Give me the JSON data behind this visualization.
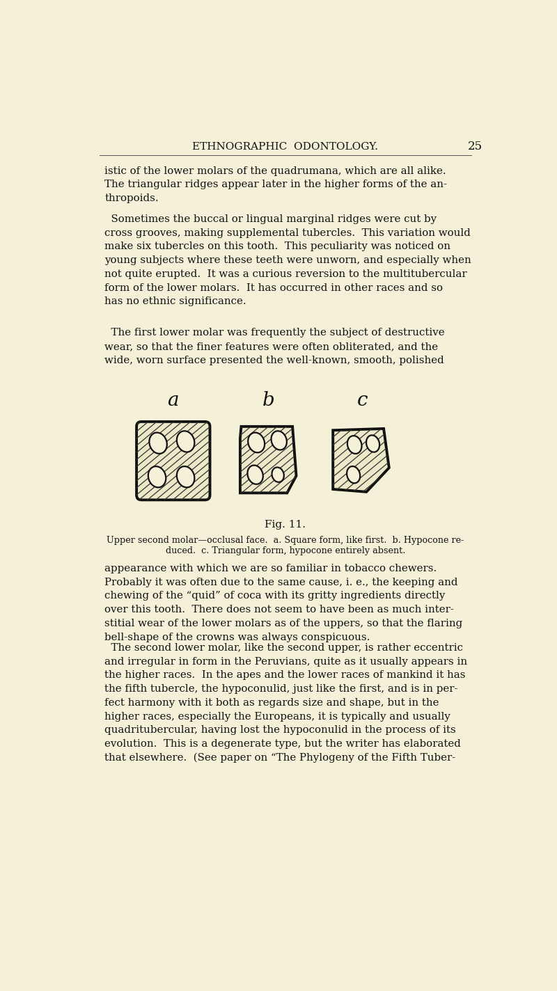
{
  "bg_color": "#f5f0d8",
  "page_number": "25",
  "header_text": "ETHNOGRAPHIC  ODONTOLOGY.",
  "title_text": "Fig. 11.",
  "label_a": "a",
  "label_b": "b",
  "label_c": "c",
  "paragraphs_top": [
    "istic of the lower molars of the quadrumana, which are all alike.\nThe triangular ridges appear later in the higher forms of the an-\nthropoids.",
    "  Sometimes the buccal or lingual marginal ridges were cut by\ncross grooves, making supplemental tubercles.  This variation would\nmake six tubercles on this tooth.  This peculiarity was noticed on\nyoung subjects where these teeth were unworn, and especially when\nnot quite erupted.  It was a curious reversion to the multitubercular\nform of the lower molars.  It has occurred in other races and so\nhas no ethnic significance.",
    "  The first lower molar was frequently the subject of destructive\nwear, so that the finer features were often obliterated, and the\nwide, worn surface presented the well-known, smooth, polished"
  ],
  "caption_line1": "Upper second molar—occlusal face.  a. Square form, like first.  b. Hypocone re-",
  "caption_line2": "duced.  c. Triangular form, hypocone entirely absent.",
  "paragraphs_bottom": [
    "appearance with which we are so familiar in tobacco chewers.\nProbably it was often due to the same cause, i. e., the keeping and\nchewing of the “quid” of coca with its gritty ingredients directly\nover this tooth.  There does not seem to have been as much inter-\nstitial wear of the lower molars as of the uppers, so that the flaring\nbell-shape of the crowns was always conspicuous.",
    "  The second lower molar, like the second upper, is rather eccentric\nand irregular in form in the Peruvians, quite as it usually appears in\nthe higher races.  In the apes and the lower races of mankind it has\nthe fifth tubercle, the hypoconulid, just like the first, and is in per-\nfect harmony with it both as regards size and shape, but in the\nhigher races, especially the Europeans, it is typically and usually\nquadritubercular, having lost the hypoconulid in the process of its\nevolution.  This is a degenerate type, but the writer has elaborated\nthat elsewhere.  (See paper on “The Phylogeny of the Fifth Tuber-"
  ]
}
